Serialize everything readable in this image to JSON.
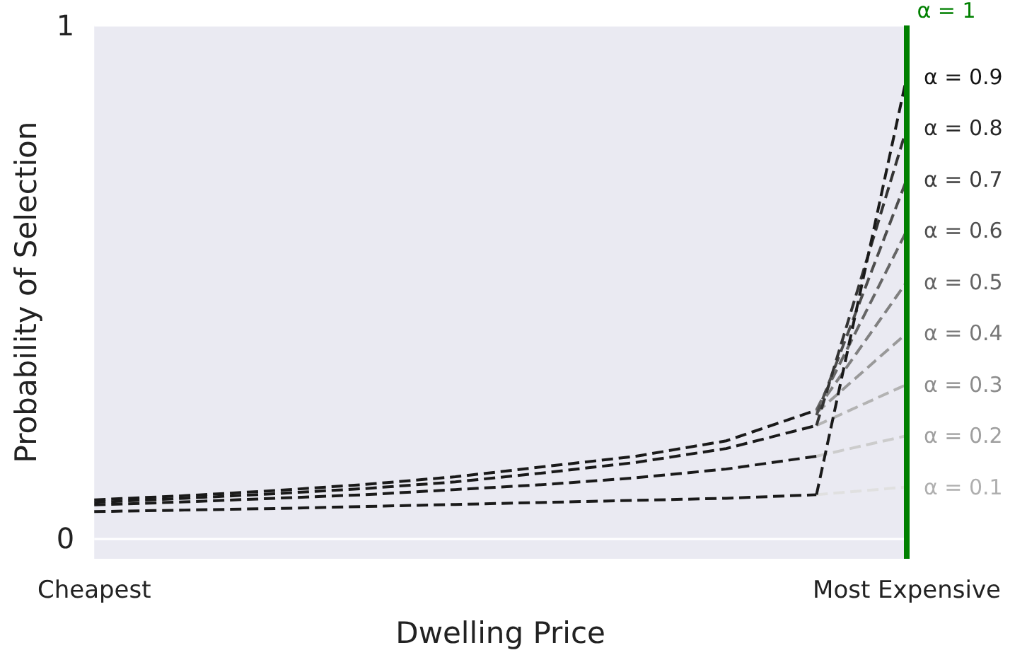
{
  "chart_data": {
    "type": "line",
    "xlabel": "Dwelling Price",
    "ylabel": "Probability of Selection",
    "categories": [
      "Cheapest",
      null,
      null,
      null,
      null,
      null,
      null,
      null,
      null,
      "Most Expensive"
    ],
    "ylim": [
      -0.04,
      1
    ],
    "yticks": [
      0,
      1
    ],
    "grid": "y",
    "legend": false,
    "marker": "none",
    "line_style": "dashed",
    "series": [
      {
        "color": "#1a1a1a",
        "values": [
          0.075,
          0.083,
          0.093,
          0.105,
          0.12,
          0.14,
          0.16,
          0.19,
          0.25,
          null
        ]
      },
      {
        "color": "#1a1a1a",
        "values": [
          0.07,
          0.078,
          0.087,
          0.097,
          0.11,
          0.128,
          0.148,
          0.175,
          0.22,
          null
        ]
      },
      {
        "color": "#1a1a1a",
        "values": [
          0.065,
          0.071,
          0.078,
          0.085,
          0.095,
          0.105,
          0.118,
          0.135,
          0.16,
          null
        ]
      },
      {
        "color": "#1a1a1a",
        "values": [
          0.052,
          0.055,
          0.058,
          0.062,
          0.066,
          0.07,
          0.074,
          0.078,
          0.085,
          null
        ]
      },
      {
        "name": "α = 0.1",
        "color": "#e0e0e0",
        "values": [
          null,
          null,
          null,
          null,
          null,
          null,
          null,
          null,
          0.085,
          0.1
        ]
      },
      {
        "name": "α = 0.2",
        "color": "#cccccc",
        "values": [
          null,
          null,
          null,
          null,
          null,
          null,
          null,
          null,
          0.16,
          0.2
        ]
      },
      {
        "name": "α = 0.3",
        "color": "#b3b3b3",
        "values": [
          null,
          null,
          null,
          null,
          null,
          null,
          null,
          null,
          0.22,
          0.3
        ]
      },
      {
        "name": "α = 0.4",
        "color": "#999999",
        "values": [
          null,
          null,
          null,
          null,
          null,
          null,
          null,
          null,
          0.245,
          0.4
        ]
      },
      {
        "name": "α = 0.5",
        "color": "#808080",
        "values": [
          null,
          null,
          null,
          null,
          null,
          null,
          null,
          null,
          0.25,
          0.5
        ]
      },
      {
        "name": "α = 0.6",
        "color": "#666666",
        "values": [
          null,
          null,
          null,
          null,
          null,
          null,
          null,
          null,
          0.25,
          0.6
        ]
      },
      {
        "name": "α = 0.7",
        "color": "#4d4d4d",
        "values": [
          null,
          null,
          null,
          null,
          null,
          null,
          null,
          null,
          0.24,
          0.7
        ]
      },
      {
        "name": "α = 0.8",
        "color": "#333333",
        "values": [
          null,
          null,
          null,
          null,
          null,
          null,
          null,
          null,
          0.22,
          0.8
        ]
      },
      {
        "name": "α = 0.9",
        "color": "#1a1a1a",
        "values": [
          null,
          null,
          null,
          null,
          null,
          null,
          null,
          null,
          0.085,
          0.9
        ]
      }
    ],
    "ref_lines": [
      {
        "axis": "x",
        "value": "Most Expensive",
        "label": "α = 1",
        "color": "#008000",
        "line_style": "solid"
      }
    ]
  }
}
